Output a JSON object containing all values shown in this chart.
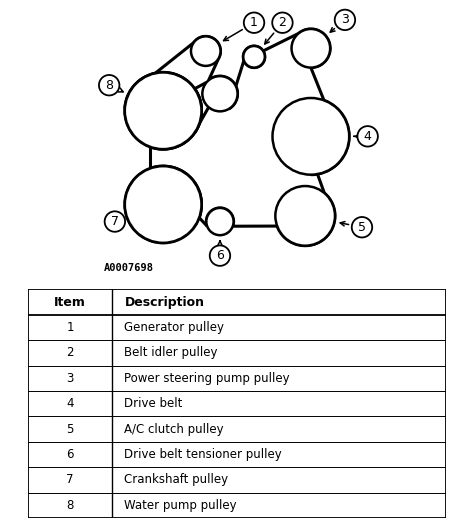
{
  "bg_color": "#ffffff",
  "pulleys": {
    "p1": [
      0.39,
      0.82,
      0.052
    ],
    "pi": [
      0.44,
      0.67,
      0.062
    ],
    "p2": [
      0.56,
      0.8,
      0.038
    ],
    "p3": [
      0.76,
      0.83,
      0.068
    ],
    "p4": [
      0.76,
      0.52,
      0.135
    ],
    "p5": [
      0.74,
      0.24,
      0.105
    ],
    "p6": [
      0.44,
      0.22,
      0.048
    ],
    "p7": [
      0.24,
      0.28,
      0.135
    ],
    "p8": [
      0.24,
      0.61,
      0.135
    ]
  },
  "labels": [
    [
      1,
      0.39,
      0.82,
      0.052,
      0.56,
      0.92,
      -1,
      -1
    ],
    [
      2,
      0.56,
      0.8,
      0.038,
      0.66,
      0.92,
      -1,
      -1
    ],
    [
      3,
      0.76,
      0.83,
      0.068,
      0.88,
      0.93,
      -1,
      -1
    ],
    [
      4,
      0.76,
      0.52,
      0.135,
      0.96,
      0.52,
      1,
      0
    ],
    [
      5,
      0.74,
      0.24,
      0.105,
      0.94,
      0.2,
      -1,
      -1
    ],
    [
      6,
      0.44,
      0.22,
      0.048,
      0.44,
      0.1,
      0,
      -1
    ],
    [
      7,
      0.24,
      0.28,
      0.135,
      0.07,
      0.22,
      -1,
      -1
    ],
    [
      8,
      0.24,
      0.61,
      0.135,
      0.05,
      0.7,
      -1,
      -1
    ]
  ],
  "table_items": [
    [
      1,
      "Generator pulley"
    ],
    [
      2,
      "Belt idler pulley"
    ],
    [
      3,
      "Power steering pump pulley"
    ],
    [
      4,
      "Drive belt"
    ],
    [
      5,
      "A/C clutch pulley"
    ],
    [
      6,
      "Drive belt tensioner pulley"
    ],
    [
      7,
      "Crankshaft pulley"
    ],
    [
      8,
      "Water pump pulley"
    ]
  ],
  "watermark": "A0007698",
  "belt_lw": 2.2,
  "pulley_lw": 1.8,
  "label_fs": 9,
  "table_fs": 8.5
}
